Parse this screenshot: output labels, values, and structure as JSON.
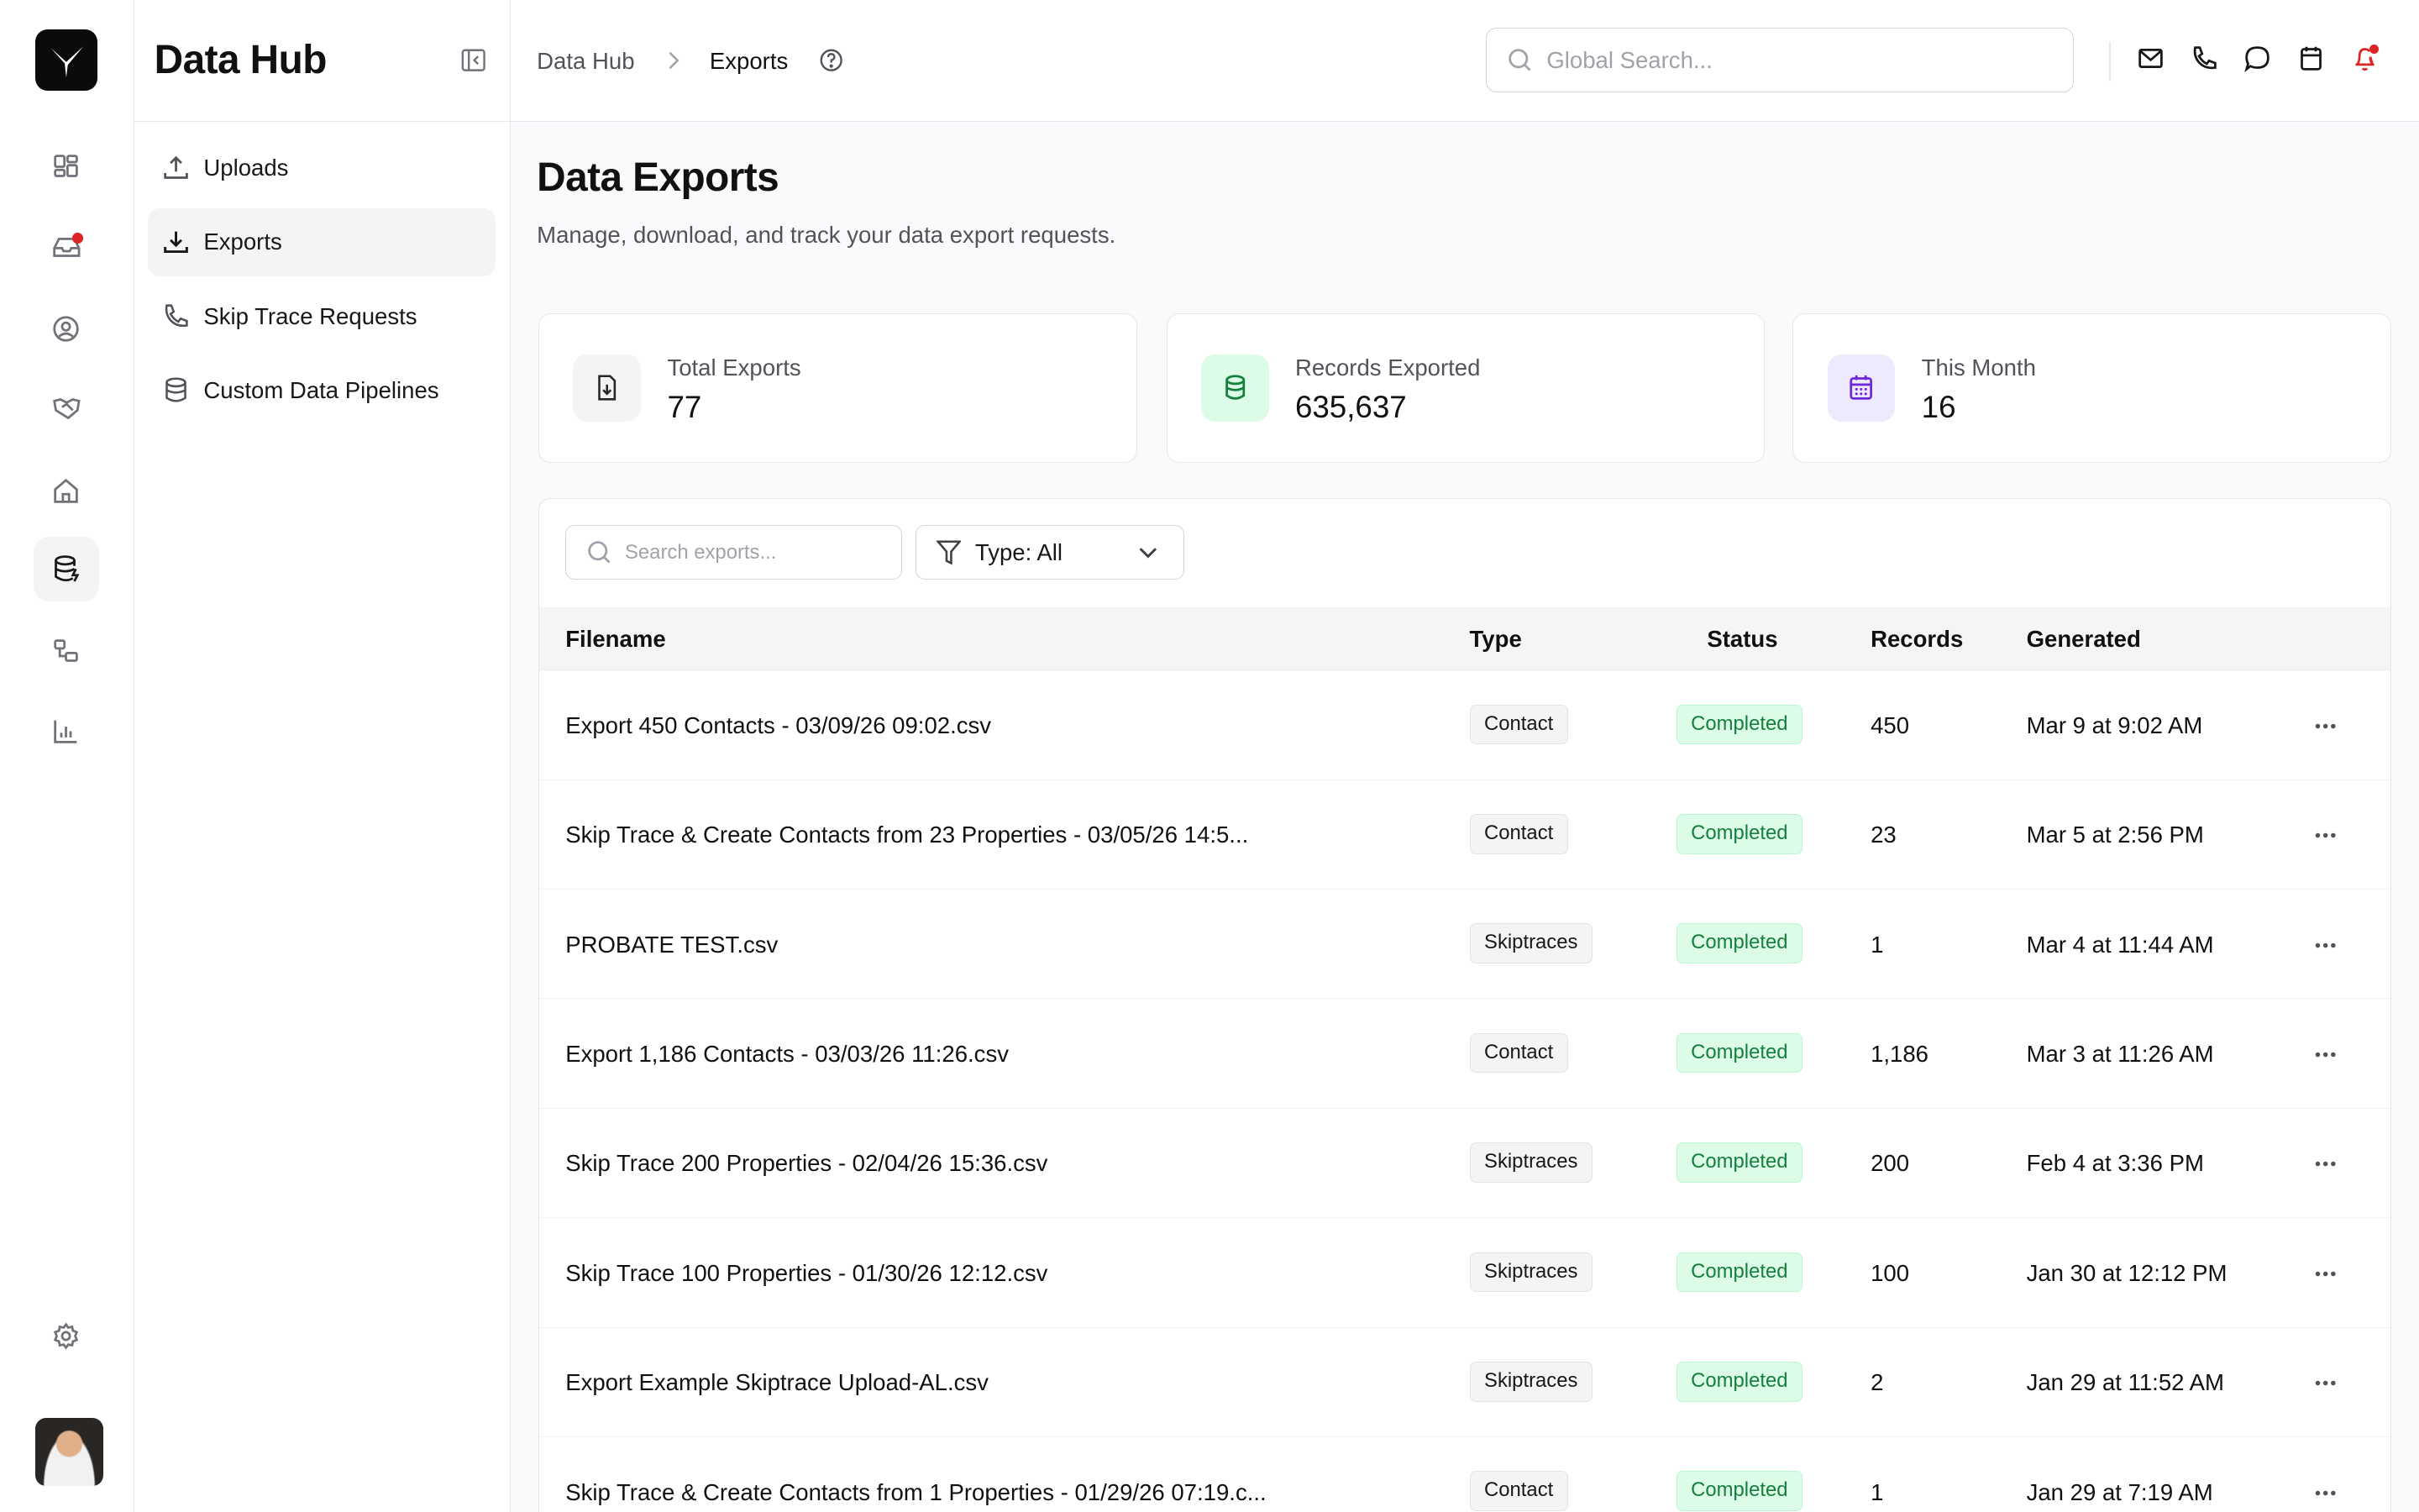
{
  "app": {
    "title": "Data Hub"
  },
  "rail": {
    "items": [
      {
        "icon": "dashboard-icon"
      },
      {
        "icon": "inbox-icon",
        "badge": true
      },
      {
        "icon": "user-circle-icon"
      },
      {
        "icon": "handshake-icon"
      },
      {
        "icon": "home-icon"
      },
      {
        "icon": "database-bolt-icon",
        "active": true
      },
      {
        "icon": "workflow-icon"
      },
      {
        "icon": "bar-chart-icon"
      }
    ],
    "settings_icon": "gear-icon"
  },
  "sidebar": {
    "items": [
      {
        "label": "Uploads",
        "icon": "upload-icon"
      },
      {
        "label": "Exports",
        "icon": "download-icon",
        "active": true
      },
      {
        "label": "Skip Trace Requests",
        "icon": "phone-icon"
      },
      {
        "label": "Custom Data Pipelines",
        "icon": "database-icon"
      }
    ]
  },
  "breadcrumb": {
    "root": "Data Hub",
    "current": "Exports"
  },
  "search": {
    "placeholder": "Global Search..."
  },
  "page": {
    "title": "Data Exports",
    "subtitle": "Manage, download, and track your data export requests."
  },
  "stats": [
    {
      "label": "Total Exports",
      "value": "77",
      "icon": "file-download-icon",
      "color": "#52525b"
    },
    {
      "label": "Records Exported",
      "value": "635,637",
      "icon": "database-icon",
      "color": "#15803d"
    },
    {
      "label": "This Month",
      "value": "16",
      "icon": "calendar-icon",
      "color": "#6d28d9"
    }
  ],
  "table": {
    "search_placeholder": "Search exports...",
    "filter_label": "Type: All",
    "columns": [
      "Filename",
      "Type",
      "Status",
      "Records",
      "Generated"
    ],
    "rows": [
      {
        "filename": "Export 450 Contacts - 03/09/26 09:02.csv",
        "type": "Contact",
        "status": "Completed",
        "records": "450",
        "generated": "Mar 9 at 9:02 AM"
      },
      {
        "filename": "Skip Trace & Create Contacts from 23 Properties - 03/05/26 14:5...",
        "type": "Contact",
        "status": "Completed",
        "records": "23",
        "generated": "Mar 5 at 2:56 PM"
      },
      {
        "filename": "PROBATE TEST.csv",
        "type": "Skiptraces",
        "status": "Completed",
        "records": "1",
        "generated": "Mar 4 at 11:44 AM"
      },
      {
        "filename": "Export 1,186 Contacts - 03/03/26 11:26.csv",
        "type": "Contact",
        "status": "Completed",
        "records": "1,186",
        "generated": "Mar 3 at 11:26 AM"
      },
      {
        "filename": "Skip Trace 200 Properties - 02/04/26 15:36.csv",
        "type": "Skiptraces",
        "status": "Completed",
        "records": "200",
        "generated": "Feb 4 at 3:36 PM"
      },
      {
        "filename": "Skip Trace 100 Properties - 01/30/26 12:12.csv",
        "type": "Skiptraces",
        "status": "Completed",
        "records": "100",
        "generated": "Jan 30 at 12:12 PM"
      },
      {
        "filename": "Export Example Skiptrace Upload-AL.csv",
        "type": "Skiptraces",
        "status": "Completed",
        "records": "2",
        "generated": "Jan 29 at 11:52 AM"
      },
      {
        "filename": "Skip Trace & Create Contacts from 1 Properties - 01/29/26 07:19.c...",
        "type": "Contact",
        "status": "Completed",
        "records": "1",
        "generated": "Jan 29 at 7:19 AM"
      }
    ]
  },
  "colors": {
    "accent": "#111111",
    "success_bg": "#dcfce7",
    "success_text": "#15803d",
    "notification": "#dc2626"
  }
}
